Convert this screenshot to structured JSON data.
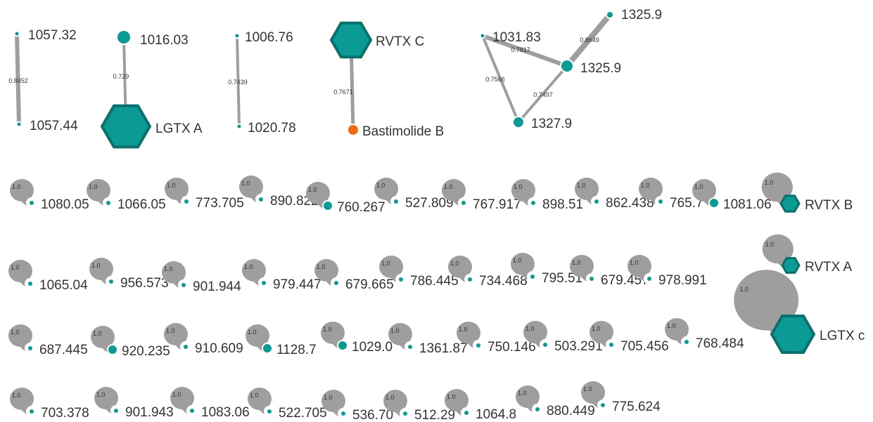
{
  "colors": {
    "node": "#0b9a94",
    "node_dark": "#0b6f6b",
    "special_node": "#f26a14",
    "edge": "#9e9e9e",
    "text": "#333333"
  },
  "components": [
    {
      "id": "c1",
      "nodes": [
        {
          "id": "n1",
          "label": "1057.32",
          "shape": "circle"
        },
        {
          "id": "n2",
          "label": "1057.44",
          "shape": "circle"
        }
      ],
      "edges": [
        {
          "source": "n1",
          "target": "n2",
          "weight": "0.8452"
        }
      ]
    },
    {
      "id": "c2",
      "nodes": [
        {
          "id": "n3",
          "label": "1016.03",
          "shape": "circle"
        },
        {
          "id": "n4",
          "label": "LGTX A",
          "shape": "hexagon"
        }
      ],
      "edges": [
        {
          "source": "n3",
          "target": "n4",
          "weight": "0.729"
        }
      ]
    },
    {
      "id": "c3",
      "nodes": [
        {
          "id": "n5",
          "label": "1006.76",
          "shape": "circle"
        },
        {
          "id": "n6",
          "label": "1020.78",
          "shape": "circle"
        }
      ],
      "edges": [
        {
          "source": "n5",
          "target": "n6",
          "weight": "0.7439"
        }
      ]
    },
    {
      "id": "c4",
      "nodes": [
        {
          "id": "n7",
          "label": "RVTX C",
          "shape": "hexagon"
        },
        {
          "id": "n8",
          "label": "Bastimolide B",
          "shape": "circle",
          "highlight": true
        }
      ],
      "edges": [
        {
          "source": "n7",
          "target": "n8",
          "weight": "0.7671"
        }
      ]
    },
    {
      "id": "c5",
      "nodes": [
        {
          "id": "n9",
          "label": "1031.83",
          "shape": "circle"
        },
        {
          "id": "n10",
          "label": "1325.9",
          "shape": "circle"
        },
        {
          "id": "n11",
          "label": "1325.9",
          "shape": "circle"
        },
        {
          "id": "n12",
          "label": "1327.9",
          "shape": "circle"
        }
      ],
      "edges": [
        {
          "source": "n9",
          "target": "n11",
          "weight": "0.7817"
        },
        {
          "source": "n10",
          "target": "n11",
          "weight": "0.8649"
        },
        {
          "source": "n9",
          "target": "n12",
          "weight": "0.7566"
        },
        {
          "source": "n11",
          "target": "n12",
          "weight": "0.7497"
        }
      ]
    }
  ],
  "singletons": [
    {
      "label": "1080.05",
      "loop_weight": "1.0"
    },
    {
      "label": "1066.05",
      "loop_weight": "1.0"
    },
    {
      "label": "773.705",
      "loop_weight": "1.0"
    },
    {
      "label": "890.822",
      "loop_weight": "1.0"
    },
    {
      "label": "760.267",
      "loop_weight": "1.0"
    },
    {
      "label": "527.809",
      "loop_weight": "1.0"
    },
    {
      "label": "767.917",
      "loop_weight": "1.0"
    },
    {
      "label": "898.51",
      "loop_weight": "1.0"
    },
    {
      "label": "862.438",
      "loop_weight": "1.0"
    },
    {
      "label": "765.7",
      "loop_weight": "1.0"
    },
    {
      "label": "1081.06",
      "loop_weight": "1.0"
    },
    {
      "label": "RVTX B",
      "loop_weight": "1.0",
      "shape": "hexagon"
    },
    {
      "label": "RVTX A",
      "loop_weight": "1.0",
      "shape": "hexagon"
    },
    {
      "label": "1065.04",
      "loop_weight": "1.0"
    },
    {
      "label": "956.573",
      "loop_weight": "1.0"
    },
    {
      "label": "901.944",
      "loop_weight": "1.0"
    },
    {
      "label": "979.447",
      "loop_weight": "1.0"
    },
    {
      "label": "679.665",
      "loop_weight": "1.0"
    },
    {
      "label": "786.445",
      "loop_weight": "1.0"
    },
    {
      "label": "734.468",
      "loop_weight": "1.0"
    },
    {
      "label": "795.51",
      "loop_weight": "1.0"
    },
    {
      "label": "679.457",
      "loop_weight": "1.0"
    },
    {
      "label": "978.991",
      "loop_weight": "1.0"
    },
    {
      "label": "LGTX c",
      "loop_weight": "1.0",
      "shape": "hexagon"
    },
    {
      "label": "687.445",
      "loop_weight": "1.0"
    },
    {
      "label": "920.235",
      "loop_weight": "1.0"
    },
    {
      "label": "910.609",
      "loop_weight": "1.0"
    },
    {
      "label": "1128.7",
      "loop_weight": "1.0"
    },
    {
      "label": "1029.0",
      "loop_weight": "1.0"
    },
    {
      "label": "1361.87",
      "loop_weight": "1.0"
    },
    {
      "label": "750.146",
      "loop_weight": "1.0"
    },
    {
      "label": "503.291",
      "loop_weight": "1.0"
    },
    {
      "label": "705.456",
      "loop_weight": "1.0"
    },
    {
      "label": "768.484",
      "loop_weight": "1.0"
    },
    {
      "label": "703.378",
      "loop_weight": "1.0"
    },
    {
      "label": "901.943",
      "loop_weight": "1.0"
    },
    {
      "label": "1083.06",
      "loop_weight": "1.0"
    },
    {
      "label": "522.705",
      "loop_weight": "1.0"
    },
    {
      "label": "536.70",
      "loop_weight": "1.0"
    },
    {
      "label": "512.29",
      "loop_weight": "1.0"
    },
    {
      "label": "1064.8",
      "loop_weight": "1.0"
    },
    {
      "label": "880.449",
      "loop_weight": "1.0"
    },
    {
      "label": "775.624",
      "loop_weight": "1.0"
    }
  ]
}
